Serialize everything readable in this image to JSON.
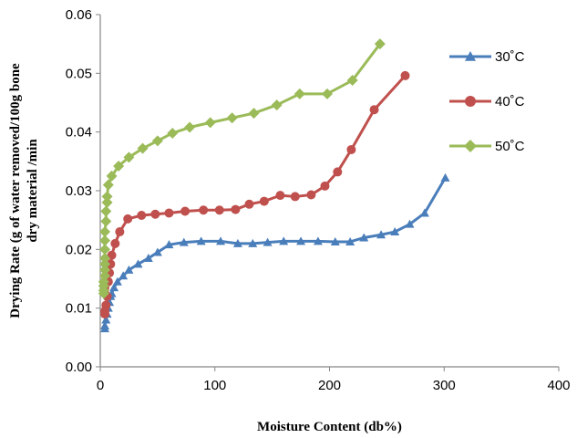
{
  "chart_data": {
    "type": "line",
    "xlabel": "Moisture Content (db%)",
    "ylabel_lines": [
      "Drying Rate (g of water removed/100g bone",
      "dry material /min"
    ],
    "xlim": [
      0,
      400
    ],
    "ylim": [
      0,
      0.06
    ],
    "x_ticks": [
      "0",
      "100",
      "200",
      "300",
      "400"
    ],
    "y_ticks": [
      "0.00",
      "0.01",
      "0.02",
      "0.03",
      "0.04",
      "0.05",
      "0.06"
    ],
    "grid": false,
    "legend_position": "right",
    "series": [
      {
        "name": "30˚C",
        "color": "#4a7ebb",
        "marker": "triangle",
        "points": [
          [
            4,
            0.0065
          ],
          [
            4,
            0.007
          ],
          [
            5,
            0.008
          ],
          [
            6,
            0.009
          ],
          [
            7,
            0.01
          ],
          [
            8,
            0.011
          ],
          [
            9,
            0.012
          ],
          [
            10,
            0.0125
          ],
          [
            12,
            0.0135
          ],
          [
            15,
            0.0145
          ],
          [
            20,
            0.0155
          ],
          [
            25,
            0.0165
          ],
          [
            33,
            0.0175
          ],
          [
            42,
            0.0185
          ],
          [
            50,
            0.0195
          ],
          [
            60,
            0.0208
          ],
          [
            73,
            0.0212
          ],
          [
            88,
            0.0214
          ],
          [
            105,
            0.0214
          ],
          [
            120,
            0.021
          ],
          [
            133,
            0.021
          ],
          [
            146,
            0.0212
          ],
          [
            160,
            0.0214
          ],
          [
            175,
            0.0214
          ],
          [
            190,
            0.0214
          ],
          [
            205,
            0.0213
          ],
          [
            218,
            0.0213
          ],
          [
            230,
            0.022
          ],
          [
            245,
            0.0225
          ],
          [
            257,
            0.023
          ],
          [
            270,
            0.0243
          ],
          [
            283,
            0.0262
          ],
          [
            301,
            0.0322
          ]
        ]
      },
      {
        "name": "40˚C",
        "color": "#c0504d",
        "marker": "circle",
        "points": [
          [
            4,
            0.009
          ],
          [
            4,
            0.0095
          ],
          [
            5,
            0.0105
          ],
          [
            6,
            0.012
          ],
          [
            7,
            0.0145
          ],
          [
            8,
            0.016
          ],
          [
            9,
            0.0175
          ],
          [
            10,
            0.019
          ],
          [
            13,
            0.021
          ],
          [
            17,
            0.023
          ],
          [
            24,
            0.0252
          ],
          [
            36,
            0.0258
          ],
          [
            48,
            0.026
          ],
          [
            60,
            0.0262
          ],
          [
            74,
            0.0265
          ],
          [
            90,
            0.0267
          ],
          [
            104,
            0.0267
          ],
          [
            118,
            0.0268
          ],
          [
            130,
            0.0277
          ],
          [
            143,
            0.0282
          ],
          [
            157,
            0.0292
          ],
          [
            170,
            0.029
          ],
          [
            184,
            0.0293
          ],
          [
            196,
            0.0308
          ],
          [
            207,
            0.0332
          ],
          [
            219,
            0.037
          ],
          [
            239,
            0.0438
          ],
          [
            266,
            0.0496
          ]
        ]
      },
      {
        "name": "50˚C",
        "color": "#9bbb59",
        "marker": "diamond",
        "points": [
          [
            3,
            0.0125
          ],
          [
            3,
            0.013
          ],
          [
            3,
            0.0138
          ],
          [
            3,
            0.0145
          ],
          [
            4,
            0.0155
          ],
          [
            4,
            0.0165
          ],
          [
            4,
            0.0175
          ],
          [
            4,
            0.0185
          ],
          [
            4,
            0.02
          ],
          [
            4,
            0.0215
          ],
          [
            4,
            0.023
          ],
          [
            5,
            0.0248
          ],
          [
            5,
            0.0265
          ],
          [
            6,
            0.028
          ],
          [
            6,
            0.029
          ],
          [
            7,
            0.031
          ],
          [
            10,
            0.0325
          ],
          [
            16,
            0.0342
          ],
          [
            25,
            0.0357
          ],
          [
            37,
            0.0372
          ],
          [
            50,
            0.0385
          ],
          [
            63,
            0.0398
          ],
          [
            78,
            0.0408
          ],
          [
            96,
            0.0416
          ],
          [
            115,
            0.0424
          ],
          [
            134,
            0.0432
          ],
          [
            154,
            0.0446
          ],
          [
            174,
            0.0465
          ],
          [
            198,
            0.0465
          ],
          [
            220,
            0.0488
          ],
          [
            244,
            0.055
          ]
        ]
      }
    ]
  }
}
